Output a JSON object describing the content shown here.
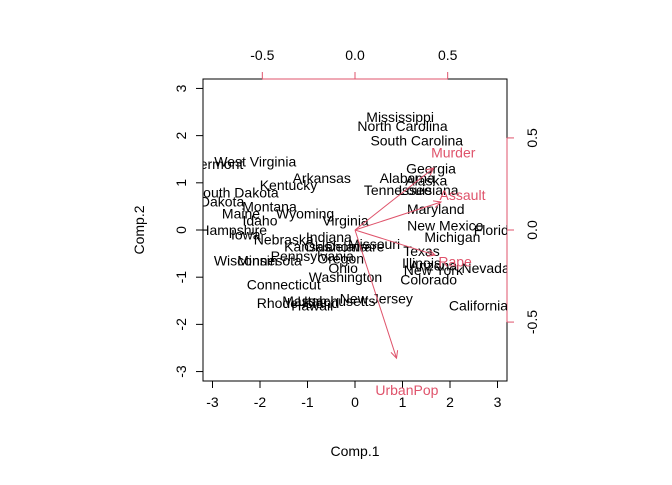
{
  "chart_data": {
    "type": "scatter",
    "subtype": "biplot",
    "title": "",
    "xlabel": "Comp.1",
    "ylabel": "Comp.2",
    "xlim": [
      -3.2,
      3.2
    ],
    "ylim": [
      -3.2,
      3.2
    ],
    "xticks": [
      -3,
      -2,
      -1,
      0,
      1,
      2,
      3
    ],
    "yticks": [
      -3,
      -2,
      -1,
      0,
      1,
      2,
      3
    ],
    "loadings_lim": [
      -0.82,
      0.82
    ],
    "loadings_xticks": [
      -0.5,
      0.0,
      0.5
    ],
    "loadings_yticks": [
      -0.5,
      0.0,
      0.5
    ],
    "loadings_tick_labels_x": [
      "-0.5",
      "0.0",
      "0.5"
    ],
    "loadings_tick_labels_y": [
      "-0.5",
      "0.0",
      "0.5"
    ],
    "loadings_color": "#DF536B",
    "grid": false,
    "points": [
      {
        "label": "Mississippi",
        "x": 0.95,
        "y": 2.4
      },
      {
        "label": "North Carolina",
        "x": 1.0,
        "y": 2.2
      },
      {
        "label": "South Carolina",
        "x": 1.3,
        "y": 1.9
      },
      {
        "label": "West Virginia",
        "x": -2.1,
        "y": 1.45
      },
      {
        "label": "Vermont",
        "x": -2.9,
        "y": 1.4
      },
      {
        "label": "Georgia",
        "x": 1.6,
        "y": 1.3
      },
      {
        "label": "Alaska",
        "x": 1.5,
        "y": 1.05
      },
      {
        "label": "Alabama",
        "x": 1.1,
        "y": 1.1
      },
      {
        "label": "Arkansas",
        "x": -0.7,
        "y": 1.1
      },
      {
        "label": "Kentucky",
        "x": -1.4,
        "y": 0.95
      },
      {
        "label": "Tennessee",
        "x": 0.9,
        "y": 0.85
      },
      {
        "label": "Louisiana",
        "x": 1.55,
        "y": 0.85
      },
      {
        "label": "South Dakota",
        "x": -2.5,
        "y": 0.8
      },
      {
        "label": "North Dakota",
        "x": -3.2,
        "y": 0.6
      },
      {
        "label": "Montana",
        "x": -1.8,
        "y": 0.5
      },
      {
        "label": "Maryland",
        "x": 1.7,
        "y": 0.45
      },
      {
        "label": "Maine",
        "x": -2.4,
        "y": 0.35
      },
      {
        "label": "Wyoming",
        "x": -1.05,
        "y": 0.35
      },
      {
        "label": "Idaho",
        "x": -2.0,
        "y": 0.2
      },
      {
        "label": "Virginia",
        "x": -0.2,
        "y": 0.2
      },
      {
        "label": "New Mexico",
        "x": 1.9,
        "y": 0.1
      },
      {
        "label": "Florida",
        "x": 2.95,
        "y": 0.0
      },
      {
        "label": "New Hampshire",
        "x": -2.9,
        "y": 0.0
      },
      {
        "label": "Iowa",
        "x": -2.3,
        "y": -0.1
      },
      {
        "label": "Michigan",
        "x": 2.05,
        "y": -0.15
      },
      {
        "label": "Nebraska",
        "x": -1.5,
        "y": -0.2
      },
      {
        "label": "Indiana",
        "x": -0.55,
        "y": -0.15
      },
      {
        "label": "Missouri",
        "x": 0.4,
        "y": -0.3
      },
      {
        "label": "Kansas",
        "x": -1.0,
        "y": -0.35
      },
      {
        "label": "Oklahoma",
        "x": -0.4,
        "y": -0.35
      },
      {
        "label": "Delaware",
        "x": 0.0,
        "y": -0.35
      },
      {
        "label": "Texas",
        "x": 1.4,
        "y": -0.45
      },
      {
        "label": "Pennsylvania",
        "x": -0.9,
        "y": -0.55
      },
      {
        "label": "Oregon",
        "x": -0.3,
        "y": -0.6
      },
      {
        "label": "Wisconsin",
        "x": -2.3,
        "y": -0.65
      },
      {
        "label": "Minnesota",
        "x": -1.8,
        "y": -0.65
      },
      {
        "label": "Ohio",
        "x": -0.25,
        "y": -0.8
      },
      {
        "label": "Illinois",
        "x": 1.4,
        "y": -0.7
      },
      {
        "label": "Arizona",
        "x": 1.65,
        "y": -0.75
      },
      {
        "label": "New York",
        "x": 1.65,
        "y": -0.85
      },
      {
        "label": "Nevada",
        "x": 2.75,
        "y": -0.8
      },
      {
        "label": "Washington",
        "x": -0.2,
        "y": -1.0
      },
      {
        "label": "Colorado",
        "x": 1.55,
        "y": -1.05
      },
      {
        "label": "Connecticut",
        "x": -1.5,
        "y": -1.15
      },
      {
        "label": "New Jersey",
        "x": 0.45,
        "y": -1.45
      },
      {
        "label": "Massachusetts",
        "x": -0.55,
        "y": -1.5
      },
      {
        "label": "Rhode Island",
        "x": -1.2,
        "y": -1.55
      },
      {
        "label": "Utah",
        "x": -0.9,
        "y": -1.5
      },
      {
        "label": "Hawaii",
        "x": -0.9,
        "y": -1.6
      },
      {
        "label": "California",
        "x": 2.6,
        "y": -1.6
      }
    ],
    "loadings": [
      {
        "label": "Murder",
        "x": 0.53,
        "y": 0.42
      },
      {
        "label": "Assault",
        "x": 0.58,
        "y": 0.19
      },
      {
        "label": "Rape",
        "x": 0.54,
        "y": -0.17
      },
      {
        "label": "UrbanPop",
        "x": 0.28,
        "y": -0.87
      }
    ]
  }
}
